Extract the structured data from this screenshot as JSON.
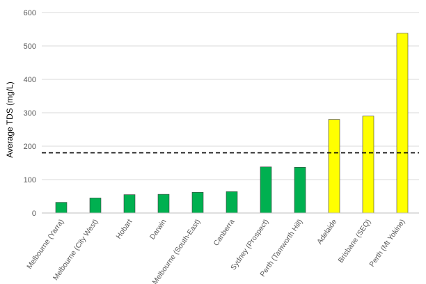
{
  "chart_data": {
    "type": "bar",
    "title": "",
    "xlabel": "",
    "ylabel": "Average TDS (mg/L)",
    "ylim": [
      0,
      600
    ],
    "yticks": [
      "0",
      "100",
      "200",
      "300",
      "400",
      "500",
      "600"
    ],
    "grid": "horizontal",
    "categories": [
      "Melbourne (Yarra)",
      "Melbourne (City West)",
      "Hobart",
      "Darwin",
      "Melbourne (South-East)",
      "Canberra",
      "Sydney (Prospect)",
      "Perth (Tamworth Hill)",
      "Adelaide",
      "Brisbane (SEQ)",
      "Perth (Mt Yokine)"
    ],
    "values": [
      32,
      45,
      55,
      56,
      62,
      64,
      138,
      137,
      280,
      290,
      538
    ],
    "bar_colors": [
      "#00b050",
      "#00b050",
      "#00b050",
      "#00b050",
      "#00b050",
      "#00b050",
      "#00b050",
      "#00b050",
      "#ffff00",
      "#ffff00",
      "#ffff00"
    ],
    "bar_stroke": "#404040",
    "reference_line": {
      "value": 180,
      "style": "dashed",
      "color": "#000000"
    }
  }
}
